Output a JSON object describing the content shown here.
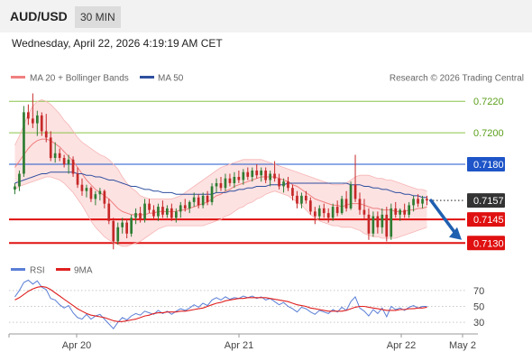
{
  "header": {
    "symbol": "AUD/USD",
    "interval": "30 MIN",
    "datetime": "Wednesday, April 22, 2026 4:19:19 AM CET"
  },
  "legend": {
    "ma20_label": "MA 20 + Bollinger Bands",
    "ma50_label": "MA 50",
    "copyright": "Research © 2026 Trading Central",
    "rsi_label": "RSI",
    "ma9_label": "9MA"
  },
  "colors": {
    "up_candle": "#2e7d32",
    "down_candle": "#c62828",
    "ma20": "#f08080",
    "bollinger_fill": "#fde2e2",
    "ma50": "#2f4f9f",
    "target_green": "#8bc34a",
    "pivot_blue": "#1e55c8",
    "support_red": "#e01010",
    "last_price": "#333333",
    "rsi": "#5b7fd6",
    "rsi_ma": "#e02020",
    "arrow": "#1f5fb0"
  },
  "levels": [
    {
      "value": 0.722,
      "label": "0.7220",
      "kind": "target"
    },
    {
      "value": 0.72,
      "label": "0.7200",
      "kind": "target"
    },
    {
      "value": 0.718,
      "label": "0.7180",
      "kind": "pivot"
    },
    {
      "value": 0.7157,
      "label": "0.7157",
      "kind": "last"
    },
    {
      "value": 0.7145,
      "label": "0.7145",
      "kind": "support"
    },
    {
      "value": 0.713,
      "label": "0.7130",
      "kind": "support"
    }
  ],
  "forecast_arrow": {
    "direction": "down",
    "from": 0.7157,
    "to": 0.7132
  },
  "x_axis": {
    "labels": [
      "Apr 20",
      "Apr 21",
      "Apr 22",
      "May 2"
    ]
  },
  "rsi_axis": {
    "labels": [
      "70",
      "50",
      "30"
    ],
    "values": [
      70,
      50,
      30
    ]
  },
  "chart_data": {
    "type": "candlestick",
    "ylim": [
      0.7125,
      0.7227
    ],
    "candles": [
      [
        0.7164,
        0.7168,
        0.7161,
        0.7166
      ],
      [
        0.7166,
        0.7176,
        0.7163,
        0.7174
      ],
      [
        0.7174,
        0.7217,
        0.7172,
        0.7213
      ],
      [
        0.7213,
        0.7218,
        0.7205,
        0.7209
      ],
      [
        0.7209,
        0.7225,
        0.7203,
        0.7206
      ],
      [
        0.7206,
        0.7214,
        0.7198,
        0.7211
      ],
      [
        0.7211,
        0.7213,
        0.7198,
        0.7201
      ],
      [
        0.7201,
        0.7212,
        0.7194,
        0.7197
      ],
      [
        0.7197,
        0.7201,
        0.7182,
        0.7184
      ],
      [
        0.7184,
        0.7194,
        0.7181,
        0.7187
      ],
      [
        0.7187,
        0.719,
        0.7182,
        0.7184
      ],
      [
        0.7184,
        0.7186,
        0.7178,
        0.718
      ],
      [
        0.718,
        0.7186,
        0.7174,
        0.7183
      ],
      [
        0.7183,
        0.7185,
        0.7172,
        0.7174
      ],
      [
        0.7174,
        0.7178,
        0.7165,
        0.7167
      ],
      [
        0.7167,
        0.7171,
        0.716,
        0.7163
      ],
      [
        0.7163,
        0.7167,
        0.7159,
        0.7165
      ],
      [
        0.7165,
        0.7166,
        0.7156,
        0.7158
      ],
      [
        0.7158,
        0.7163,
        0.7154,
        0.7161
      ],
      [
        0.7161,
        0.7165,
        0.7157,
        0.7163
      ],
      [
        0.7163,
        0.7164,
        0.7152,
        0.7155
      ],
      [
        0.7155,
        0.7158,
        0.7142,
        0.7144
      ],
      [
        0.7144,
        0.7146,
        0.7126,
        0.7131
      ],
      [
        0.7131,
        0.7143,
        0.7129,
        0.714
      ],
      [
        0.714,
        0.7146,
        0.7136,
        0.7143
      ],
      [
        0.7143,
        0.7145,
        0.7133,
        0.7136
      ],
      [
        0.7136,
        0.7148,
        0.7134,
        0.7146
      ],
      [
        0.7146,
        0.7152,
        0.7142,
        0.7149
      ],
      [
        0.7149,
        0.7153,
        0.7143,
        0.7145
      ],
      [
        0.7145,
        0.7158,
        0.7143,
        0.7155
      ],
      [
        0.7155,
        0.7158,
        0.7149,
        0.7151
      ],
      [
        0.7151,
        0.7154,
        0.7145,
        0.7147
      ],
      [
        0.7147,
        0.7155,
        0.7144,
        0.7153
      ],
      [
        0.7153,
        0.7157,
        0.7146,
        0.7148
      ],
      [
        0.7148,
        0.7154,
        0.7146,
        0.7152
      ],
      [
        0.7152,
        0.7155,
        0.7144,
        0.7146
      ],
      [
        0.7146,
        0.7152,
        0.7143,
        0.715
      ],
      [
        0.715,
        0.7156,
        0.7146,
        0.7154
      ],
      [
        0.7154,
        0.7158,
        0.715,
        0.7152
      ],
      [
        0.7152,
        0.7157,
        0.7149,
        0.7156
      ],
      [
        0.7156,
        0.7162,
        0.7153,
        0.7159
      ],
      [
        0.7159,
        0.7161,
        0.7152,
        0.7154
      ],
      [
        0.7154,
        0.7162,
        0.7152,
        0.716
      ],
      [
        0.716,
        0.7163,
        0.7154,
        0.7156
      ],
      [
        0.7156,
        0.7168,
        0.7154,
        0.7166
      ],
      [
        0.7166,
        0.7171,
        0.7162,
        0.7168
      ],
      [
        0.7168,
        0.7172,
        0.7163,
        0.7165
      ],
      [
        0.7165,
        0.7174,
        0.7163,
        0.7171
      ],
      [
        0.7171,
        0.7174,
        0.7166,
        0.7168
      ],
      [
        0.7168,
        0.7175,
        0.7165,
        0.7172
      ],
      [
        0.7172,
        0.7176,
        0.7168,
        0.717
      ],
      [
        0.717,
        0.7177,
        0.7167,
        0.7175
      ],
      [
        0.7175,
        0.7178,
        0.717,
        0.7172
      ],
      [
        0.7172,
        0.7178,
        0.7169,
        0.7176
      ],
      [
        0.7176,
        0.718,
        0.7171,
        0.7173
      ],
      [
        0.7173,
        0.7178,
        0.7169,
        0.7176
      ],
      [
        0.7176,
        0.7178,
        0.7168,
        0.717
      ],
      [
        0.717,
        0.7176,
        0.7166,
        0.7174
      ],
      [
        0.7174,
        0.7182,
        0.7169,
        0.7171
      ],
      [
        0.7171,
        0.7174,
        0.7164,
        0.7166
      ],
      [
        0.7166,
        0.7171,
        0.7162,
        0.7169
      ],
      [
        0.7169,
        0.7172,
        0.7163,
        0.7165
      ],
      [
        0.7165,
        0.7167,
        0.7157,
        0.716
      ],
      [
        0.716,
        0.7163,
        0.7152,
        0.7155
      ],
      [
        0.7155,
        0.7162,
        0.7152,
        0.716
      ],
      [
        0.716,
        0.7163,
        0.7155,
        0.7157
      ],
      [
        0.7157,
        0.7159,
        0.7148,
        0.715
      ],
      [
        0.715,
        0.7153,
        0.7142,
        0.7147
      ],
      [
        0.7147,
        0.7154,
        0.7145,
        0.7152
      ],
      [
        0.7152,
        0.7155,
        0.7146,
        0.7149
      ],
      [
        0.7149,
        0.7152,
        0.7143,
        0.7146
      ],
      [
        0.7146,
        0.7155,
        0.7144,
        0.7153
      ],
      [
        0.7153,
        0.7157,
        0.7147,
        0.7149
      ],
      [
        0.7149,
        0.716,
        0.7148,
        0.7158
      ],
      [
        0.7158,
        0.7163,
        0.715,
        0.7152
      ],
      [
        0.7152,
        0.7169,
        0.7151,
        0.7167
      ],
      [
        0.7167,
        0.7186,
        0.7156,
        0.7158
      ],
      [
        0.7158,
        0.7162,
        0.7148,
        0.7151
      ],
      [
        0.7151,
        0.7158,
        0.7145,
        0.7148
      ],
      [
        0.7148,
        0.7152,
        0.7132,
        0.7136
      ],
      [
        0.7136,
        0.715,
        0.7134,
        0.7147
      ],
      [
        0.7147,
        0.715,
        0.7136,
        0.714
      ],
      [
        0.714,
        0.7152,
        0.7136,
        0.7148
      ],
      [
        0.7148,
        0.7153,
        0.7131,
        0.7134
      ],
      [
        0.7134,
        0.7155,
        0.7132,
        0.7152
      ],
      [
        0.7152,
        0.7156,
        0.7146,
        0.7148
      ],
      [
        0.7148,
        0.7152,
        0.7144,
        0.7151
      ],
      [
        0.7151,
        0.7155,
        0.7146,
        0.7148
      ],
      [
        0.7148,
        0.7156,
        0.7146,
        0.7154
      ],
      [
        0.7154,
        0.716,
        0.715,
        0.7158
      ],
      [
        0.7158,
        0.7161,
        0.7153,
        0.7155
      ],
      [
        0.7155,
        0.716,
        0.7152,
        0.7158
      ],
      [
        0.7158,
        0.716,
        0.7154,
        0.7157
      ]
    ],
    "ma20": [
      0.7178,
      0.7182,
      0.7186,
      0.719,
      0.7193,
      0.7195,
      0.7196,
      0.7196,
      0.7195,
      0.7193,
      0.7191,
      0.7188,
      0.7185,
      0.7182,
      0.7178,
      0.7174,
      0.717,
      0.7167,
      0.7164,
      0.7162,
      0.716,
      0.7158,
      0.7155,
      0.7152,
      0.715,
      0.7149,
      0.7148,
      0.7148,
      0.7148,
      0.7148,
      0.7149,
      0.7149,
      0.715,
      0.715,
      0.715,
      0.715,
      0.715,
      0.7151,
      0.7151,
      0.7152,
      0.7153,
      0.7154,
      0.7155,
      0.7156,
      0.7158,
      0.716,
      0.7161,
      0.7163,
      0.7164,
      0.7166,
      0.7167,
      0.7168,
      0.7169,
      0.717,
      0.7171,
      0.7172,
      0.7172,
      0.7172,
      0.7172,
      0.7171,
      0.717,
      0.7169,
      0.7167,
      0.7166,
      0.7164,
      0.7162,
      0.716,
      0.7158,
      0.7157,
      0.7156,
      0.7155,
      0.7154,
      0.7154,
      0.7153,
      0.7154,
      0.7155,
      0.7155,
      0.7155,
      0.7154,
      0.7153,
      0.7152,
      0.7152,
      0.7151,
      0.7151,
      0.7151,
      0.715,
      0.715,
      0.715,
      0.7151,
      0.7151,
      0.7152,
      0.7152,
      0.7153
    ],
    "ma50": [
      0.7168,
      0.7169,
      0.717,
      0.7171,
      0.7172,
      0.7173,
      0.7174,
      0.7174,
      0.7175,
      0.7175,
      0.7175,
      0.7175,
      0.7175,
      0.7175,
      0.7174,
      0.7174,
      0.7173,
      0.7173,
      0.7172,
      0.7172,
      0.7171,
      0.717,
      0.717,
      0.7169,
      0.7168,
      0.7167,
      0.7166,
      0.7166,
      0.7165,
      0.7164,
      0.7164,
      0.7163,
      0.7163,
      0.7162,
      0.7162,
      0.7162,
      0.7161,
      0.7161,
      0.7161,
      0.7161,
      0.7161,
      0.7161,
      0.7161,
      0.7161,
      0.7161,
      0.7162,
      0.7162,
      0.7162,
      0.7163,
      0.7163,
      0.7164,
      0.7164,
      0.7165,
      0.7165,
      0.7166,
      0.7166,
      0.7166,
      0.7167,
      0.7167,
      0.7167,
      0.7167,
      0.7168,
      0.7168,
      0.7168,
      0.7168,
      0.7168,
      0.7168,
      0.7168,
      0.7168,
      0.7168,
      0.7168,
      0.7168,
      0.7168,
      0.7168,
      0.7168,
      0.7167,
      0.7167,
      0.7167,
      0.7166,
      0.7166,
      0.7165,
      0.7165,
      0.7164,
      0.7164,
      0.7163,
      0.7162,
      0.7162,
      0.7161,
      0.7161,
      0.716,
      0.716,
      0.7159,
      0.7159
    ],
    "bb_upper": [
      0.7192,
      0.7198,
      0.7205,
      0.7212,
      0.7217,
      0.722,
      0.7221,
      0.722,
      0.7218,
      0.7215,
      0.7212,
      0.7208,
      0.7205,
      0.7201,
      0.7197,
      0.7194,
      0.7192,
      0.719,
      0.7188,
      0.7186,
      0.7185,
      0.7183,
      0.718,
      0.7177,
      0.7172,
      0.7168,
      0.7165,
      0.7163,
      0.716,
      0.7159,
      0.7158,
      0.7158,
      0.7158,
      0.7158,
      0.7158,
      0.7158,
      0.7159,
      0.716,
      0.7162,
      0.7164,
      0.7166,
      0.7168,
      0.717,
      0.7172,
      0.7174,
      0.7176,
      0.7178,
      0.7179,
      0.718,
      0.7181,
      0.7182,
      0.7183,
      0.7183,
      0.7183,
      0.7183,
      0.7183,
      0.7182,
      0.7181,
      0.718,
      0.7179,
      0.7178,
      0.7177,
      0.7176,
      0.7175,
      0.7174,
      0.7173,
      0.7172,
      0.7171,
      0.717,
      0.7169,
      0.7168,
      0.7167,
      0.7167,
      0.7167,
      0.7168,
      0.717,
      0.7172,
      0.7173,
      0.7173,
      0.7173,
      0.7172,
      0.7171,
      0.7171,
      0.717,
      0.717,
      0.7169,
      0.7168,
      0.7167,
      0.7166,
      0.7165,
      0.7164,
      0.7164,
      0.7163
    ],
    "bb_lower": [
      0.7164,
      0.7166,
      0.7167,
      0.7168,
      0.7169,
      0.717,
      0.7171,
      0.7172,
      0.7172,
      0.7171,
      0.717,
      0.7168,
      0.7165,
      0.7162,
      0.7158,
      0.7154,
      0.7149,
      0.7144,
      0.714,
      0.7137,
      0.7134,
      0.7132,
      0.713,
      0.7129,
      0.7128,
      0.7128,
      0.7129,
      0.713,
      0.7131,
      0.7133,
      0.7135,
      0.7137,
      0.7139,
      0.714,
      0.7141,
      0.7141,
      0.7141,
      0.7141,
      0.7141,
      0.7141,
      0.7141,
      0.7141,
      0.7141,
      0.7142,
      0.7143,
      0.7144,
      0.7145,
      0.7147,
      0.7148,
      0.715,
      0.7152,
      0.7153,
      0.7155,
      0.7156,
      0.7158,
      0.7159,
      0.7161,
      0.7162,
      0.7163,
      0.7162,
      0.7161,
      0.716,
      0.7158,
      0.7156,
      0.7154,
      0.7151,
      0.7148,
      0.7146,
      0.7144,
      0.7143,
      0.7142,
      0.7141,
      0.7141,
      0.714,
      0.714,
      0.714,
      0.7139,
      0.7138,
      0.7136,
      0.7135,
      0.7134,
      0.7134,
      0.7133,
      0.7133,
      0.7133,
      0.7133,
      0.7134,
      0.7135,
      0.7136,
      0.7137,
      0.7138,
      0.7139,
      0.714
    ],
    "rsi": [
      62,
      70,
      80,
      83,
      78,
      82,
      74,
      71,
      60,
      58,
      52,
      48,
      51,
      42,
      36,
      34,
      40,
      34,
      38,
      40,
      34,
      28,
      22,
      30,
      36,
      33,
      38,
      41,
      39,
      44,
      42,
      40,
      45,
      41,
      44,
      40,
      44,
      47,
      45,
      48,
      52,
      49,
      54,
      51,
      58,
      61,
      58,
      62,
      59,
      61,
      60,
      63,
      61,
      63,
      60,
      62,
      58,
      60,
      56,
      52,
      55,
      50,
      47,
      43,
      49,
      47,
      43,
      40,
      45,
      43,
      41,
      46,
      43,
      49,
      45,
      56,
      62,
      48,
      44,
      38,
      46,
      41,
      48,
      37,
      50,
      46,
      48,
      45,
      49,
      51,
      48,
      50,
      50
    ],
    "rsi_ma": [
      58,
      61,
      65,
      69,
      72,
      74,
      75,
      74,
      71,
      67,
      63,
      59,
      55,
      51,
      47,
      44,
      41,
      39,
      38,
      37,
      36,
      34,
      32,
      31,
      31,
      32,
      33,
      34,
      36,
      38,
      39,
      41,
      42,
      42,
      43,
      43,
      43,
      44,
      44,
      45,
      46,
      47,
      48,
      50,
      52,
      54,
      55,
      57,
      58,
      59,
      60,
      60,
      61,
      61,
      61,
      61,
      61,
      60,
      59,
      58,
      57,
      56,
      54,
      52,
      51,
      50,
      48,
      47,
      46,
      45,
      44,
      44,
      44,
      44,
      45,
      47,
      49,
      50,
      50,
      49,
      48,
      47,
      46,
      45,
      45,
      45,
      46,
      46,
      47,
      47,
      48,
      48,
      49
    ]
  }
}
